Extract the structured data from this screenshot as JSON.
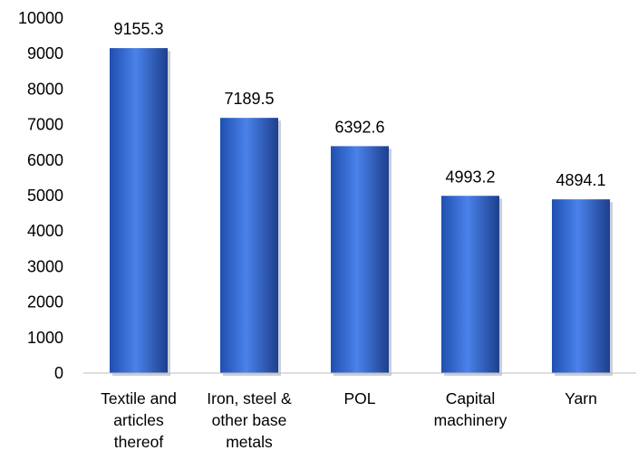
{
  "chart_data": {
    "type": "bar",
    "title": "",
    "xlabel": "",
    "ylabel": "",
    "categories": [
      [
        "Textile and",
        "articles",
        "thereof"
      ],
      [
        "Iron, steel &",
        "other base",
        "metals"
      ],
      [
        "POL"
      ],
      [
        "Capital",
        "machinery"
      ],
      [
        "Yarn"
      ]
    ],
    "values": [
      9155.3,
      7189.5,
      6392.6,
      4993.2,
      4894.1
    ],
    "data_labels": [
      "9155.3",
      "7189.5",
      "6392.6",
      "4993.2",
      "4894.1"
    ],
    "ylim": [
      0,
      10000
    ],
    "yticks": [
      "0",
      "1000",
      "2000",
      "3000",
      "4000",
      "5000",
      "6000",
      "7000",
      "8000",
      "9000",
      "10000"
    ],
    "grid": false,
    "legend": "none",
    "colors": {
      "bar": "#2f63c9",
      "bar_light": "#5a8ef0",
      "bar_dark": "#1d3f8c",
      "axis": "#bfbfbf",
      "text": "#000000"
    }
  }
}
